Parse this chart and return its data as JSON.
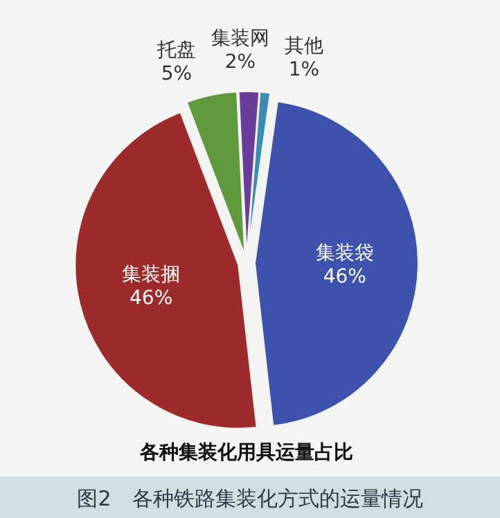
{
  "chart_data": {
    "type": "pie",
    "title": "各种集装化用具运量占比",
    "categories": [
      "集装袋",
      "集装捆",
      "托盘",
      "集装网",
      "其他"
    ],
    "values": [
      46,
      46,
      5,
      2,
      1
    ],
    "value_labels": [
      "46%",
      "46%",
      "5%",
      "2%",
      "1%"
    ],
    "colors": [
      "#3d52ad",
      "#9e2b2b",
      "#5f9a3c",
      "#6a3c9c",
      "#3b8db5"
    ],
    "annotations": [
      "图2　各种铁路集装化方式的运量情况"
    ]
  }
}
